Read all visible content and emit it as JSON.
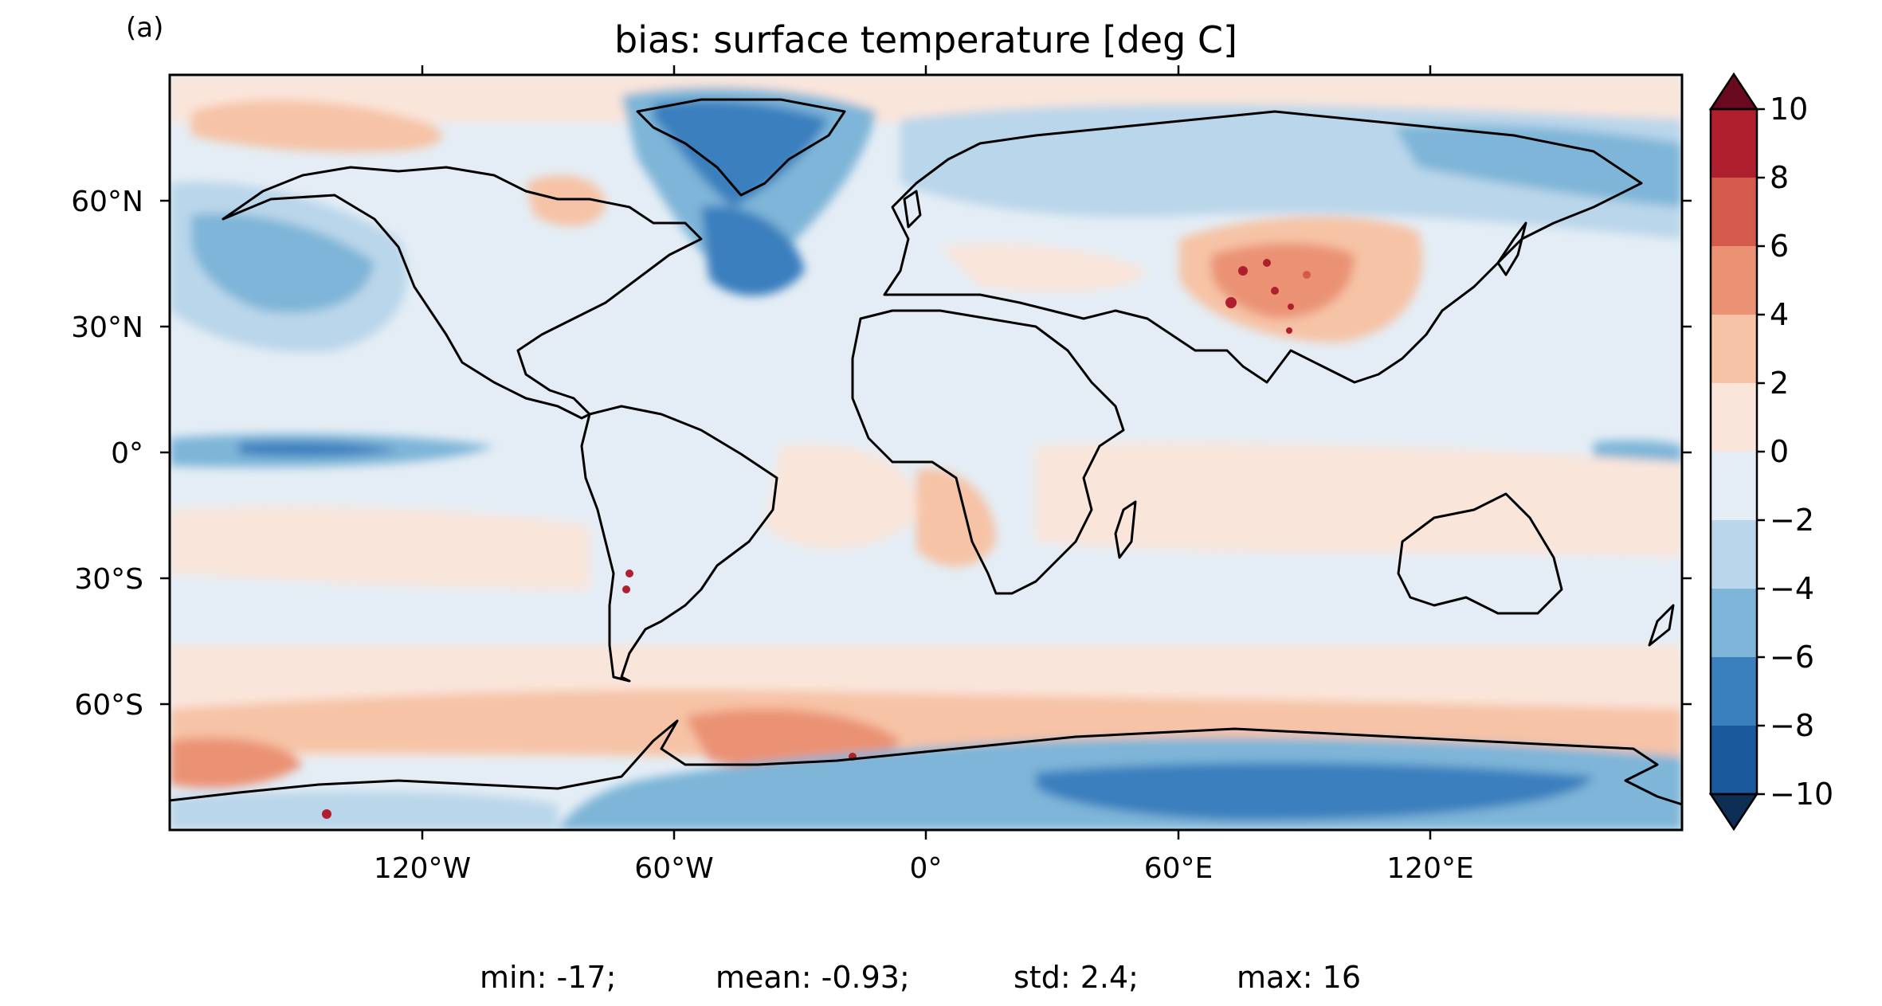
{
  "panel_label": "(a)",
  "title": "bias: surface temperature [deg C]",
  "x_ticks": [
    "120°W",
    "60°W",
    "0°",
    "60°E",
    "120°E"
  ],
  "y_ticks": [
    "60°N",
    "30°N",
    "0°",
    "30°S",
    "60°S"
  ],
  "colorbar": {
    "levels": [
      -10,
      -8,
      -6,
      -4,
      -2,
      0,
      2,
      4,
      6,
      8,
      10
    ],
    "labels": [
      "−10",
      "−8",
      "−6",
      "−4",
      "−2",
      "0",
      "2",
      "4",
      "6",
      "8",
      "10"
    ],
    "colors": [
      "#1a5a9c",
      "#3a7fbe",
      "#7eb5d8",
      "#bad6ea",
      "#e4edf5",
      "#fae5da",
      "#f6c3a6",
      "#eb9274",
      "#d45a4c",
      "#b01f2e"
    ],
    "under_color": "#0d2e55",
    "over_color": "#6a0a1e",
    "extend": "both"
  },
  "stats": {
    "min": "min: -17;",
    "mean": "mean: -0.93;",
    "std": "std: 2.4;",
    "max": "max: 16"
  },
  "colors": {
    "land_outline": "#000000",
    "background_field": "#e4edf5"
  }
}
